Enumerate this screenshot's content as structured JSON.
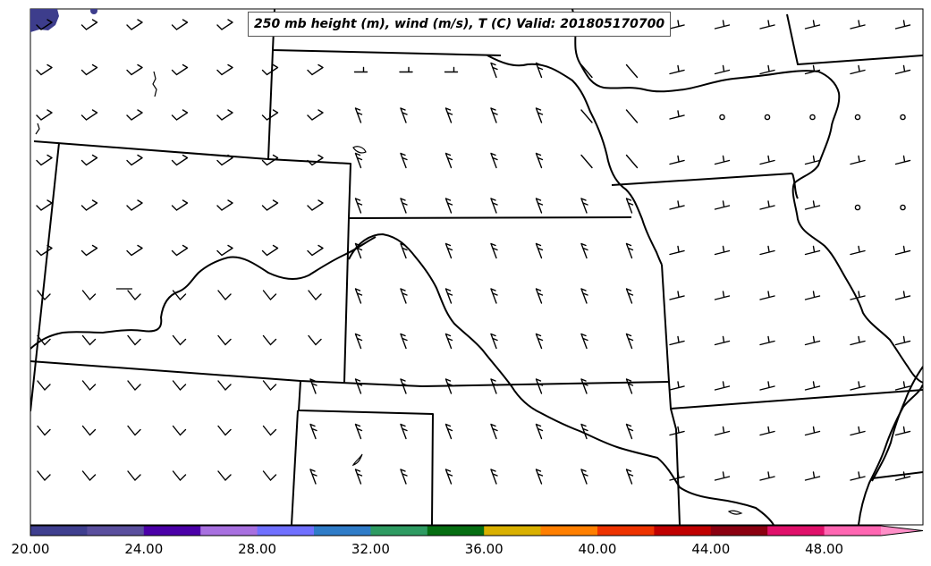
{
  "title": "250 mb height (m), wind (m/s), T (C) Valid: 201805170700",
  "colorbar": {
    "tick_labels": [
      "20.00",
      "24.00",
      "28.00",
      "32.00",
      "36.00",
      "40.00",
      "44.00",
      "48.00"
    ],
    "min": 20,
    "max": 52,
    "step": 2,
    "extend": "max",
    "colors": [
      "#3f3f8f",
      "#5a4f9e",
      "#4b00a8",
      "#a870e0",
      "#7070ff",
      "#2f7cc8",
      "#2e9b62",
      "#066e12",
      "#d9b000",
      "#ff7f00",
      "#ee3300",
      "#c00000",
      "#8b0010",
      "#e0106a",
      "#ff66b2"
    ],
    "extend_color": "#ff8fc8"
  },
  "colors": {
    "border": "#000000",
    "shaded_region": "#3d3d8c"
  }
}
